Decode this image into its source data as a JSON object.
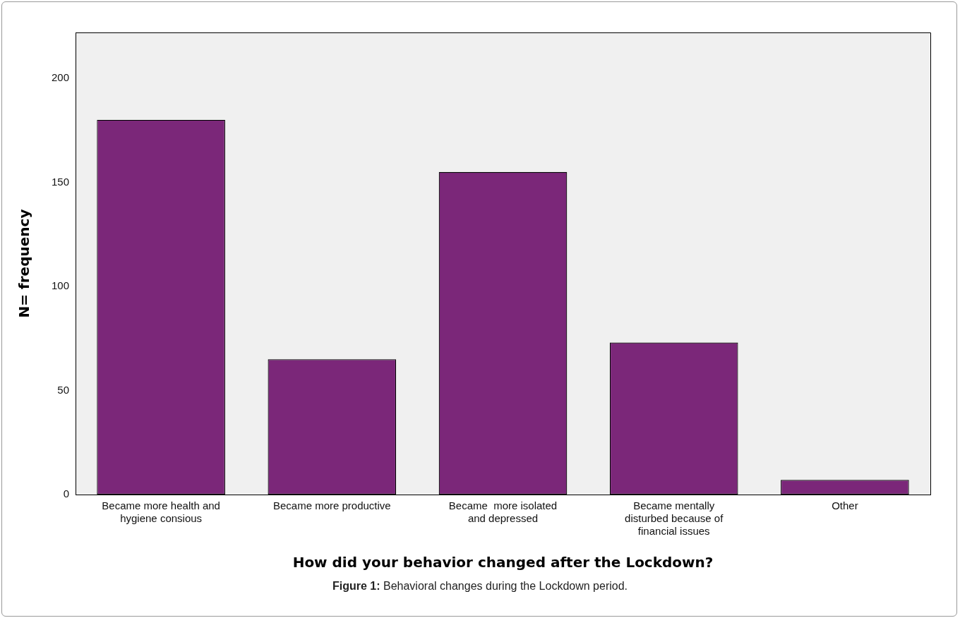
{
  "chart_data": {
    "type": "bar",
    "categories": [
      "Became more health and hygiene consious",
      "Became more productive",
      "Became  more isolated and depressed",
      "Became mentally disturbed because of financial issues",
      "Other"
    ],
    "values": [
      180,
      65,
      155,
      73,
      7
    ],
    "color": "#7b2779",
    "ylim": [
      0,
      222
    ],
    "yticks": [
      0,
      50,
      100,
      150,
      200
    ],
    "xlabel": "How did your behavior changed after the Lockdown?",
    "ylabel": "N= frequency",
    "grid": false,
    "legend": false,
    "annotations": [
      "Figure 1: Behavioral changes during the Lockdown period."
    ]
  }
}
